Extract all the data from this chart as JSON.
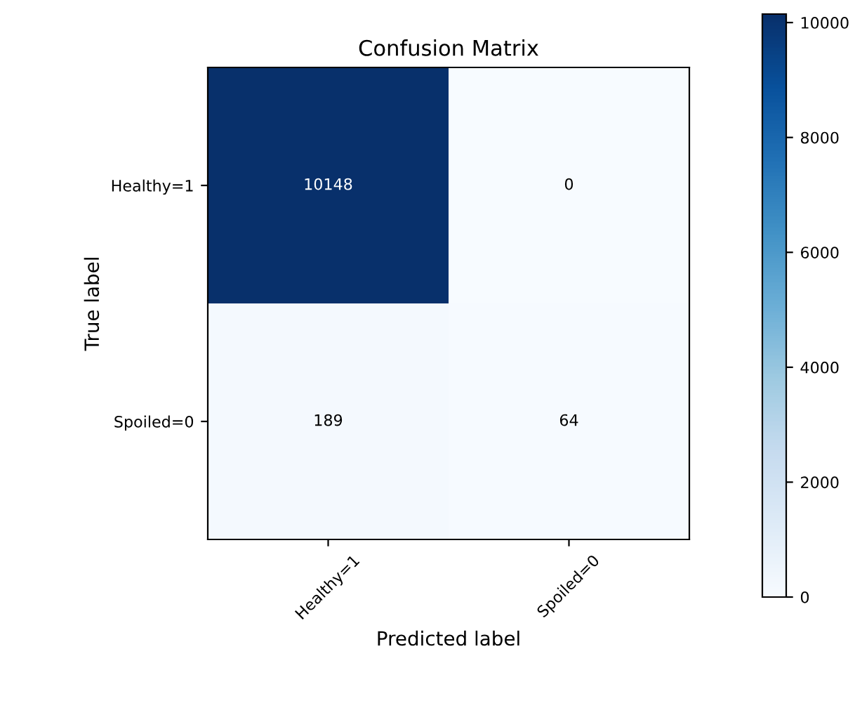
{
  "chart_data": {
    "type": "heatmap",
    "title": "Confusion Matrix",
    "xlabel": "Predicted label",
    "ylabel": "True label",
    "categories": [
      "Healthy=1",
      "Spoiled=0"
    ],
    "y_categories": [
      "Healthy=1",
      "Spoiled=0"
    ],
    "cells": [
      [
        10148,
        0
      ],
      [
        189,
        64
      ]
    ],
    "clim": [
      0,
      10148
    ],
    "cticks": [
      0,
      2000,
      4000,
      6000,
      8000,
      10000
    ],
    "data_labels": true
  }
}
